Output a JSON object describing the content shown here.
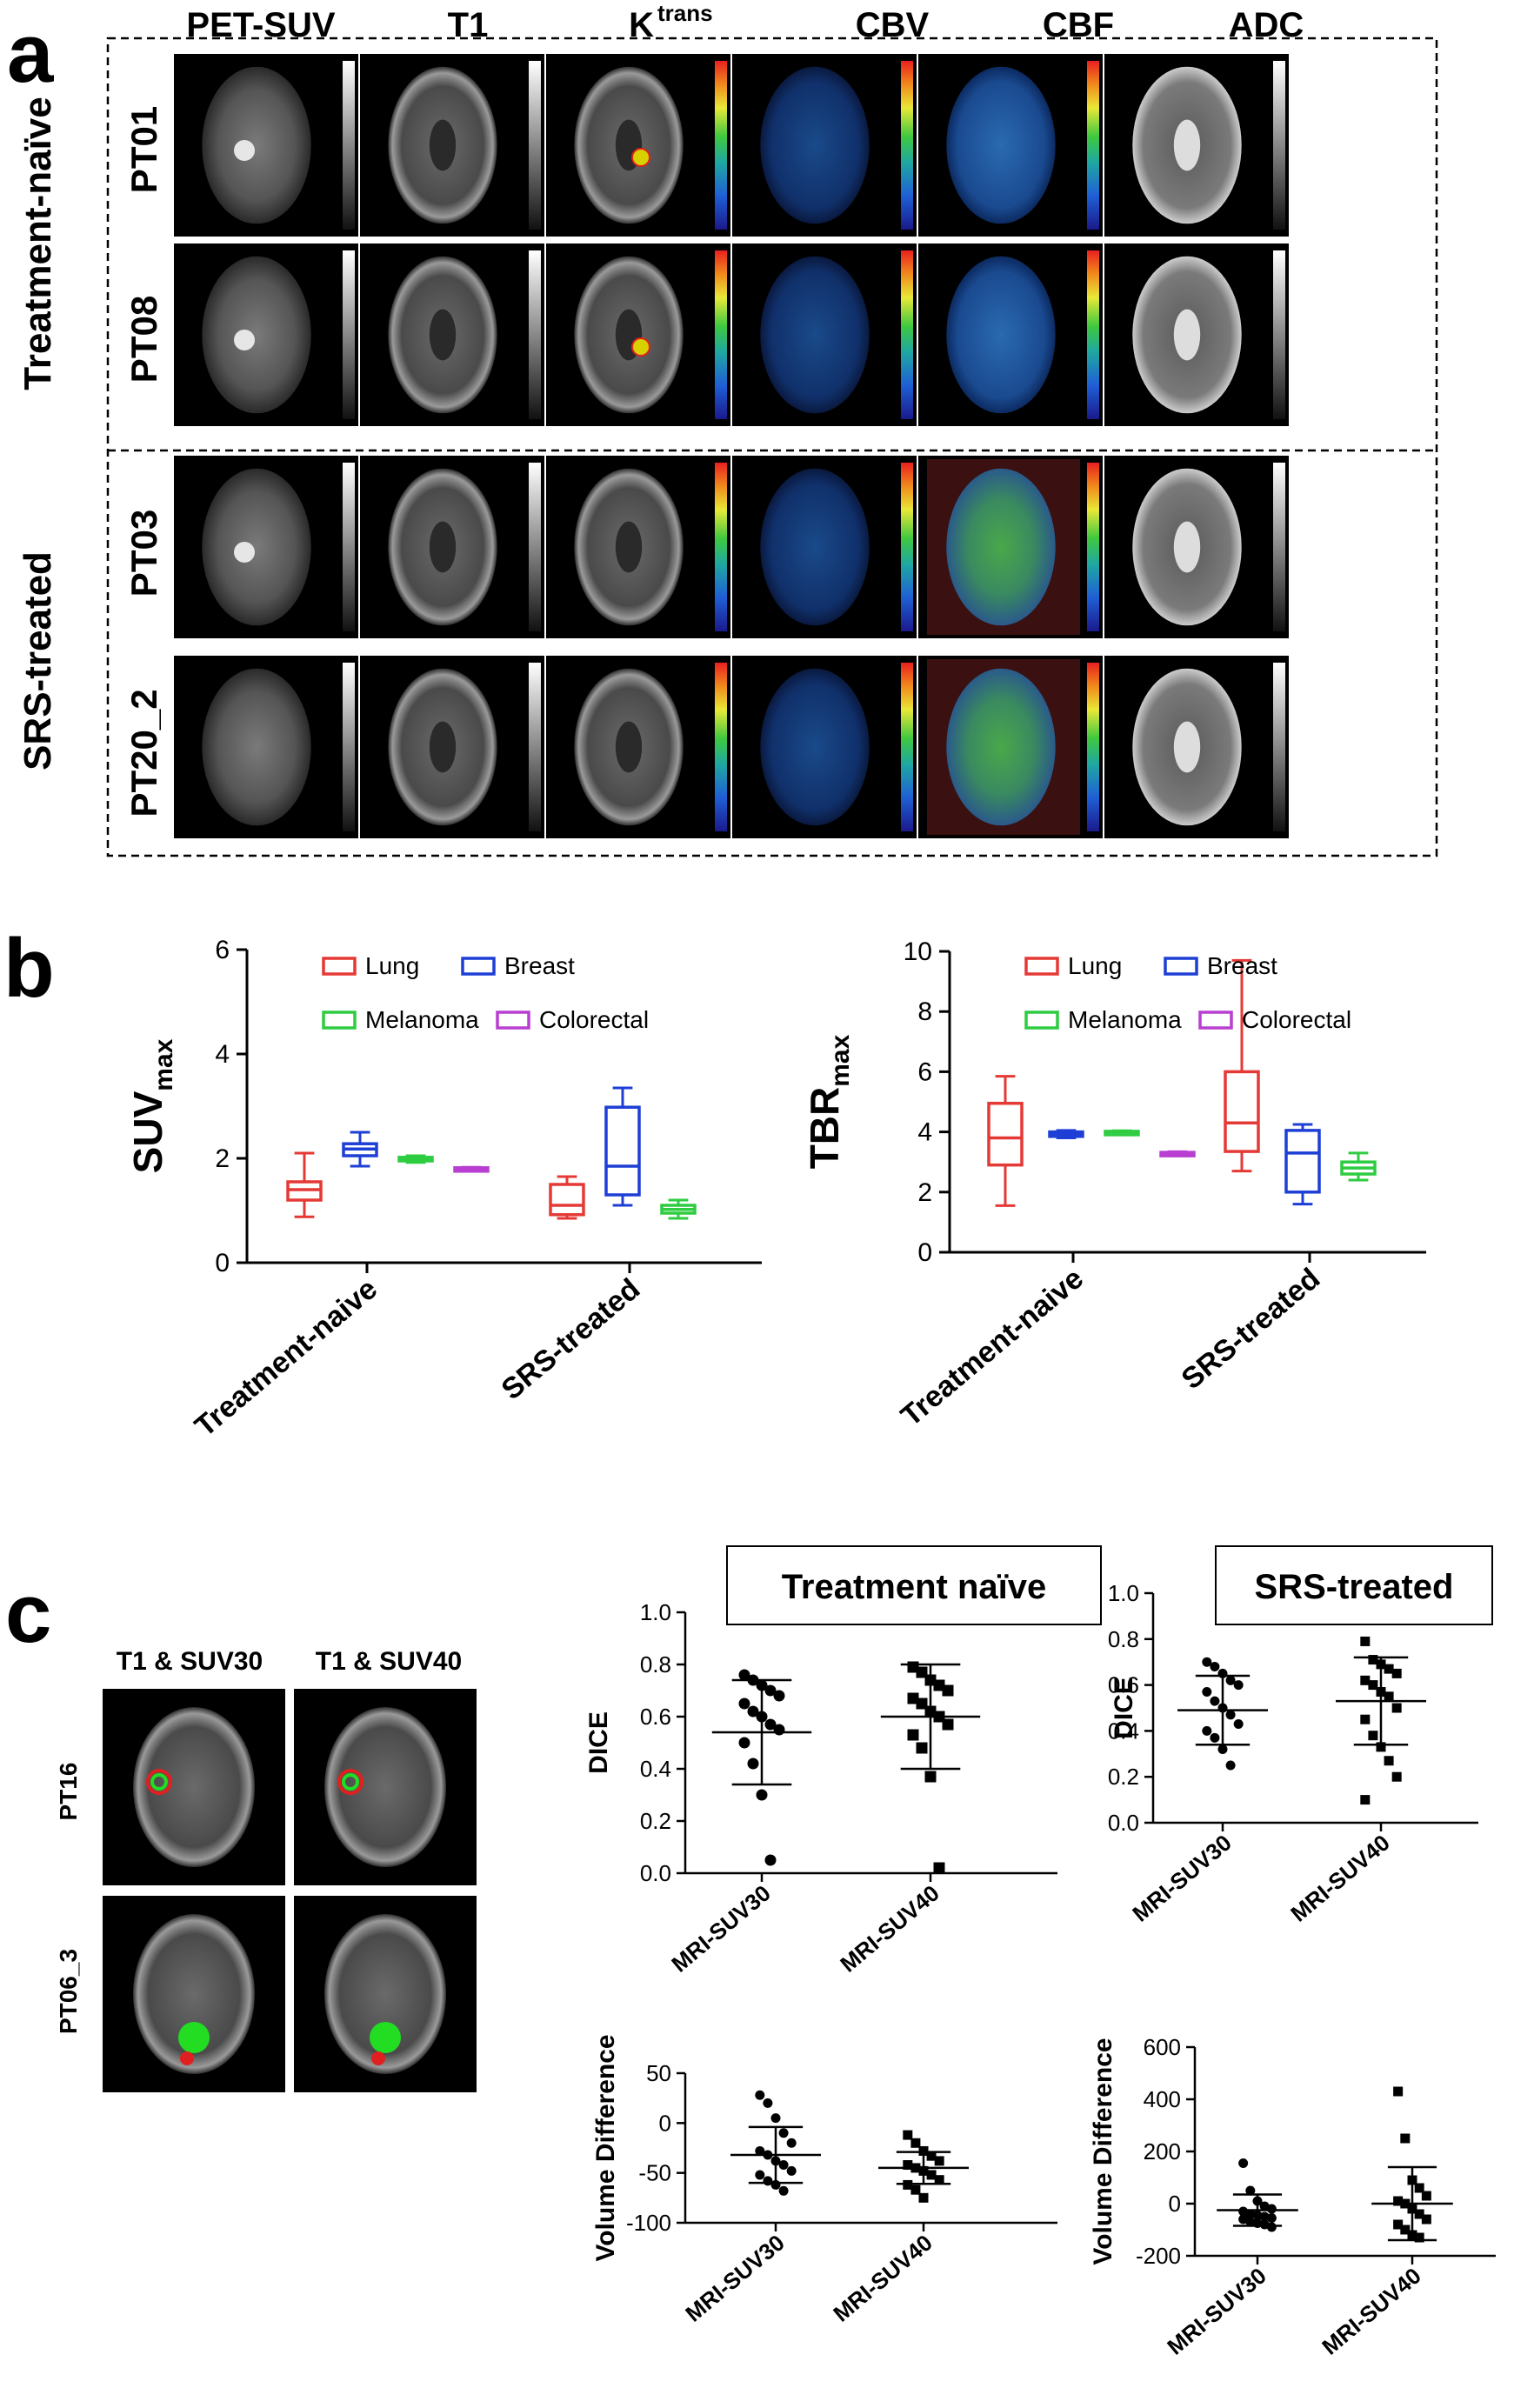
{
  "panel_a": {
    "letter": "a",
    "columns": [
      "PET-SUV",
      "T1",
      "K",
      "trans",
      "CBV",
      "CBF",
      "ADC"
    ],
    "groups": [
      {
        "label": "Treatment-naïve",
        "rows": [
          "PT01",
          "PT08"
        ]
      },
      {
        "label": "SRS-treated",
        "rows": [
          "PT03",
          "PT20_2"
        ]
      }
    ]
  },
  "panel_b": {
    "letter": "b",
    "legend": [
      "Lung",
      "Breast",
      "Melanoma",
      "Colorectal"
    ],
    "colors": {
      "lung": "#e53935",
      "breast": "#1e3fd6",
      "melanoma": "#2ecc40",
      "colorectal": "#b83fd1"
    }
  },
  "panel_c": {
    "letter": "c",
    "thumb_headers": [
      "T1 & SUV30",
      "T1 & SUV40"
    ],
    "thumb_rows": [
      "PT16",
      "PT06_3"
    ],
    "title_naive": "Treatment naïve",
    "title_srs": "SRS-treated"
  },
  "chart_data": [
    {
      "id": "suvmax",
      "type": "box",
      "ylabel_main": "SUV",
      "ylabel_sub": "max",
      "categories": [
        "Treatment-naive",
        "SRS-treated"
      ],
      "ylim": [
        0,
        6
      ],
      "yticks": [
        "0",
        "2",
        "4",
        "6"
      ],
      "series": [
        {
          "name": "Lung",
          "boxes": [
            {
              "min": 0.88,
              "q1": 1.2,
              "median": 1.4,
              "q3": 1.55,
              "max": 2.1
            },
            {
              "min": 0.85,
              "q1": 0.92,
              "median": 1.1,
              "q3": 1.5,
              "max": 1.65
            }
          ]
        },
        {
          "name": "Breast",
          "boxes": [
            {
              "min": 1.85,
              "q1": 2.05,
              "median": 2.18,
              "q3": 2.28,
              "max": 2.5
            },
            {
              "min": 1.1,
              "q1": 1.3,
              "median": 1.85,
              "q3": 2.98,
              "max": 3.35
            }
          ]
        },
        {
          "name": "Melanoma",
          "boxes": [
            {
              "min": 1.92,
              "q1": 1.95,
              "median": 1.98,
              "q3": 2.02,
              "max": 2.05
            },
            {
              "min": 0.85,
              "q1": 0.95,
              "median": 1.02,
              "q3": 1.1,
              "max": 1.2
            }
          ]
        },
        {
          "name": "Colorectal",
          "boxes": [
            {
              "min": 1.77,
              "q1": 1.79,
              "median": 1.8,
              "q3": 1.82,
              "max": 1.83
            },
            null
          ]
        }
      ]
    },
    {
      "id": "tbrmax",
      "type": "box",
      "ylabel_main": "TBR",
      "ylabel_sub": "max",
      "categories": [
        "Treatment-naive",
        "SRS-treated"
      ],
      "ylim": [
        0,
        10
      ],
      "yticks": [
        "0",
        "2",
        "4",
        "6",
        "8",
        "10"
      ],
      "series": [
        {
          "name": "Lung",
          "boxes": [
            {
              "min": 1.55,
              "q1": 2.9,
              "median": 3.8,
              "q3": 4.95,
              "max": 5.85
            },
            {
              "min": 2.7,
              "q1": 3.35,
              "median": 4.3,
              "q3": 6.0,
              "max": 9.7
            }
          ]
        },
        {
          "name": "Breast",
          "boxes": [
            {
              "min": 3.8,
              "q1": 3.85,
              "median": 3.92,
              "q3": 4.0,
              "max": 4.05
            },
            {
              "min": 1.6,
              "q1": 2.0,
              "median": 3.3,
              "q3": 4.05,
              "max": 4.25
            }
          ]
        },
        {
          "name": "Melanoma",
          "boxes": [
            {
              "min": 3.97,
              "q1": 3.98,
              "median": 4.0,
              "q3": 4.02,
              "max": 4.04
            },
            {
              "min": 2.4,
              "q1": 2.6,
              "median": 2.8,
              "q3": 3.0,
              "max": 3.3
            }
          ]
        },
        {
          "name": "Colorectal",
          "boxes": [
            {
              "min": 3.22,
              "q1": 3.25,
              "median": 3.28,
              "q3": 3.32,
              "max": 3.34
            },
            null
          ]
        }
      ]
    },
    {
      "id": "dice_naive",
      "type": "scatter",
      "ylabel": "DICE",
      "categories": [
        "MRI-SUV30",
        "MRI-SUV40"
      ],
      "ylim": [
        0,
        1
      ],
      "yticks": [
        "0.0",
        "0.2",
        "0.4",
        "0.6",
        "0.8",
        "1.0"
      ],
      "groups": [
        {
          "marker": "circle",
          "mean": 0.54,
          "sd": 0.2,
          "values": [
            0.76,
            0.74,
            0.72,
            0.7,
            0.68,
            0.65,
            0.62,
            0.6,
            0.57,
            0.55,
            0.5,
            0.42,
            0.3,
            0.05
          ]
        },
        {
          "marker": "square",
          "mean": 0.6,
          "sd": 0.2,
          "values": [
            0.79,
            0.77,
            0.74,
            0.72,
            0.7,
            0.67,
            0.65,
            0.62,
            0.6,
            0.57,
            0.53,
            0.48,
            0.37,
            0.02
          ]
        }
      ]
    },
    {
      "id": "dice_srs",
      "type": "scatter",
      "ylabel": "DICE",
      "categories": [
        "MRI-SUV30",
        "MRI-SUV40"
      ],
      "ylim": [
        0,
        1
      ],
      "yticks": [
        "0.0",
        "0.2",
        "0.4",
        "0.6",
        "0.8",
        "1.0"
      ],
      "groups": [
        {
          "marker": "circle",
          "mean": 0.49,
          "sd": 0.15,
          "values": [
            0.7,
            0.68,
            0.65,
            0.62,
            0.6,
            0.57,
            0.53,
            0.5,
            0.47,
            0.43,
            0.4,
            0.37,
            0.32,
            0.25
          ]
        },
        {
          "marker": "square",
          "mean": 0.53,
          "sd": 0.19,
          "values": [
            0.79,
            0.71,
            0.69,
            0.67,
            0.65,
            0.62,
            0.6,
            0.57,
            0.55,
            0.5,
            0.45,
            0.38,
            0.33,
            0.27,
            0.2,
            0.1
          ]
        }
      ]
    },
    {
      "id": "vol_naive",
      "type": "scatter",
      "ylabel": "Volume Difference",
      "categories": [
        "MRI-SUV30",
        "MRI-SUV40"
      ],
      "ylim": [
        -100,
        50
      ],
      "yticks": [
        "-100",
        "-50",
        "0",
        "50"
      ],
      "groups": [
        {
          "marker": "circle",
          "mean": -32,
          "sd": 28,
          "values": [
            28,
            20,
            5,
            -10,
            -20,
            -28,
            -32,
            -38,
            -42,
            -48,
            -52,
            -58,
            -62,
            -68
          ]
        },
        {
          "marker": "square",
          "mean": -45,
          "sd": 16,
          "values": [
            -12,
            -20,
            -28,
            -33,
            -38,
            -42,
            -45,
            -48,
            -52,
            -57,
            -62,
            -67,
            -75
          ]
        }
      ]
    },
    {
      "id": "vol_srs",
      "type": "scatter",
      "ylabel": "Volume Difference",
      "categories": [
        "MRI-SUV30",
        "MRI-SUV40"
      ],
      "ylim": [
        -200,
        600
      ],
      "yticks": [
        "-200",
        "0",
        "200",
        "400",
        "600"
      ],
      "groups": [
        {
          "marker": "circle",
          "mean": -25,
          "sd": 60,
          "values": [
            155,
            50,
            10,
            -10,
            -20,
            -30,
            -40,
            -45,
            -50,
            -55,
            -60,
            -70,
            -75,
            -80,
            -90
          ]
        },
        {
          "marker": "square",
          "mean": 0,
          "sd": 140,
          "values": [
            430,
            250,
            90,
            60,
            30,
            10,
            0,
            -20,
            -40,
            -60,
            -80,
            -100,
            -120,
            -130
          ]
        }
      ]
    }
  ]
}
